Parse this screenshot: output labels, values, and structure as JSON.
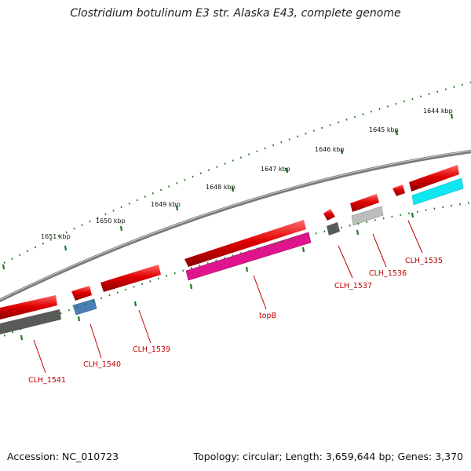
{
  "title": "Clostridium botulinum E3 str. Alaska E43, complete genome",
  "footer": {
    "accession": "Accession: NC_010723",
    "summary": "Topology: circular; Length: 3,659,644 bp; Genes: 3,370"
  },
  "colors": {
    "backbone": "#777777",
    "tick": "#1e7a1e",
    "gene_red": "#e00000",
    "gene_pink": "#e0148c",
    "gene_blue": "#4a7fb5",
    "gene_dark": "#5a5a5a",
    "gene_light": "#bdbdbd",
    "gene_cyan": "#10e6f0",
    "label": "#c00000"
  },
  "scale_labels": [
    "1644 kbp",
    "1645 kbp",
    "1646 kbp",
    "1647 kbp",
    "1648 kbp",
    "1649 kbp",
    "1650 kbp",
    "1651 kbp"
  ],
  "gene_labels": [
    "CLH_1535",
    "CLH_1536",
    "CLH_1537",
    "topB",
    "CLH_1539",
    "CLH_1540",
    "CLH_1541"
  ]
}
